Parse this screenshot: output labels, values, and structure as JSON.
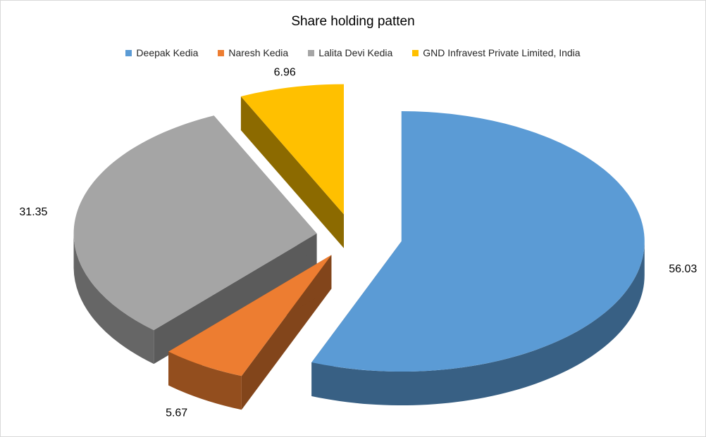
{
  "chart_data": {
    "type": "pie",
    "title": "Share holding patten",
    "legend_position": "top",
    "exploded": true,
    "categories": [
      "Deepak Kedia",
      "Naresh Kedia",
      "Lalita Devi Kedia",
      "GND Infravest Private Limited, India"
    ],
    "values": [
      56.03,
      5.67,
      31.35,
      6.96
    ],
    "labels": [
      "56.03",
      "5.67",
      "31.35",
      "6.96"
    ],
    "colors": [
      "#5b9bd5",
      "#ed7d31",
      "#a5a5a5",
      "#ffc000"
    ]
  }
}
